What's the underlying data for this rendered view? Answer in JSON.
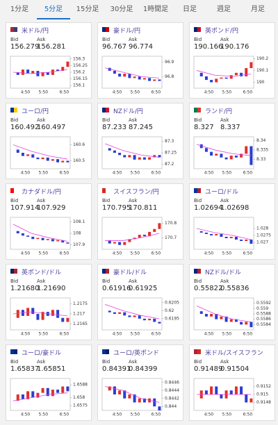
{
  "tabs": [
    "1分足",
    "5分足",
    "15分足",
    "30分足",
    "1時間足",
    "日足",
    "週足",
    "月足"
  ],
  "active_tab": 1,
  "labels": {
    "bid": "Bid",
    "ask": "Ask"
  },
  "x_ticks": [
    "4:50",
    "5:50",
    "6:50"
  ],
  "cards": [
    {
      "title": "米ドル/円",
      "flag": [
        "#b22234",
        "#3c3b6e"
      ],
      "bid": "156.279",
      "ask": "156.281",
      "ylim": [
        156.08,
        156.32
      ],
      "yticks": [
        156.3,
        156.25,
        156.2,
        156.15,
        156.1
      ],
      "closes": [
        156.2,
        156.18,
        156.22,
        156.19,
        156.21,
        156.17,
        156.2,
        156.18,
        156.22,
        156.21,
        156.24,
        156.28
      ],
      "ma": [
        156.2,
        156.19,
        156.2,
        156.22
      ]
    },
    {
      "title": "豪ドル/円",
      "flag": [
        "#00247d",
        "#cc0000"
      ],
      "bid": "96.767",
      "ask": "96.774",
      "ylim": [
        96.72,
        96.94
      ],
      "yticks": [
        96.9,
        96.8
      ],
      "closes": [
        96.86,
        96.84,
        96.82,
        96.8,
        96.82,
        96.79,
        96.8,
        96.78,
        96.79,
        96.77,
        96.78,
        96.77
      ],
      "ma": [
        96.86,
        96.83,
        96.8,
        96.79
      ]
    },
    {
      "title": "英ポンド/円",
      "flag": [
        "#012169",
        "#c8102e"
      ],
      "bid": "190.166",
      "ask": "190.176",
      "ylim": [
        189.95,
        190.22
      ],
      "yticks": [
        190.2,
        190.1,
        190
      ],
      "closes": [
        190.08,
        190.05,
        190.02,
        190.0,
        190.03,
        190.04,
        190.03,
        190.06,
        190.08,
        190.05,
        190.12,
        190.17
      ],
      "ma": [
        190.1,
        190.06,
        190.05,
        190.07
      ]
    },
    {
      "title": "ユーロ/円",
      "flag": [
        "#003399",
        "#ffcc00"
      ],
      "bid": "160.492",
      "ask": "160.497",
      "ylim": [
        160.45,
        160.65
      ],
      "yticks": [
        160.6,
        160.5
      ],
      "closes": [
        160.57,
        160.55,
        160.53,
        160.54,
        160.52,
        160.51,
        160.52,
        160.5,
        160.51,
        160.49,
        160.5,
        160.49
      ],
      "ma": [
        160.6,
        160.56,
        160.53,
        160.51
      ]
    },
    {
      "title": "NZドル/円",
      "flag": [
        "#00247d",
        "#cc142b"
      ],
      "bid": "87.233",
      "ask": "87.245",
      "ylim": [
        87.18,
        87.32
      ],
      "yticks": [
        87.3,
        87.25,
        87.2
      ],
      "closes": [
        87.27,
        87.26,
        87.25,
        87.24,
        87.23,
        87.24,
        87.22,
        87.23,
        87.22,
        87.23,
        87.24,
        87.23
      ],
      "ma": [
        87.29,
        87.26,
        87.24,
        87.23
      ]
    },
    {
      "title": "ランド/円",
      "flag": [
        "#007a4d",
        "#de3831"
      ],
      "bid": "8.327",
      "ask": "8.337",
      "ylim": [
        8.325,
        8.342
      ],
      "yticks": [
        8.34,
        8.335,
        8.33
      ],
      "closes": [
        8.338,
        8.336,
        8.334,
        8.332,
        8.333,
        8.331,
        8.33,
        8.332,
        8.331,
        8.333,
        8.337,
        8.327
      ],
      "ma": [
        8.338,
        8.335,
        8.333,
        8.332
      ]
    },
    {
      "title": "カナダドル/円",
      "flag": [
        "#ff0000",
        "#ffffff"
      ],
      "bid": "107.914",
      "ask": "107.929",
      "ylim": [
        107.86,
        108.14
      ],
      "yticks": [
        108.1,
        108,
        107.9
      ],
      "closes": [
        108.02,
        108.0,
        107.98,
        107.97,
        107.95,
        107.96,
        107.94,
        107.95,
        107.93,
        107.94,
        107.92,
        107.91
      ],
      "ma": [
        108.08,
        108.0,
        107.96,
        107.93
      ]
    },
    {
      "title": "スイスフラン/円",
      "flag": [
        "#d52b1e",
        "#ffffff"
      ],
      "bid": "170.795",
      "ask": "170.811",
      "ylim": [
        170.62,
        170.84
      ],
      "yticks": [
        170.8,
        170.7
      ],
      "closes": [
        170.68,
        170.66,
        170.67,
        170.65,
        170.67,
        170.69,
        170.7,
        170.72,
        170.71,
        170.74,
        170.76,
        170.8
      ],
      "ma": [
        170.68,
        170.68,
        170.7,
        170.73
      ]
    },
    {
      "title": "ユーロ/ドル",
      "flag": [
        "#003399",
        "#b22234"
      ],
      "bid": "1.02694",
      "ask": "1.02698",
      "ylim": [
        1.0265,
        1.0288
      ],
      "yticks": [
        1.028,
        1.0275,
        1.027
      ],
      "closes": [
        1.0278,
        1.0277,
        1.0276,
        1.0275,
        1.0276,
        1.0274,
        1.0273,
        1.0274,
        1.0272,
        1.0271,
        1.0272,
        1.0269
      ],
      "ma": [
        1.028,
        1.0277,
        1.0275,
        1.0272
      ]
    },
    {
      "title": "英ポンド/ドル",
      "flag": [
        "#012169",
        "#b22234"
      ],
      "bid": "1.21680",
      "ask": "1.21690",
      "ylim": [
        1.2162,
        1.2178
      ],
      "yticks": [
        1.2175,
        1.217,
        1.2165
      ],
      "closes": [
        1.2168,
        1.2172,
        1.2169,
        1.2173,
        1.217,
        1.2167,
        1.2171,
        1.2169,
        1.2172,
        1.2168,
        1.2166,
        1.2168
      ],
      "ma": [
        1.217,
        1.2171,
        1.217,
        1.2169
      ]
    },
    {
      "title": "豪ドル/ドル",
      "flag": [
        "#00247d",
        "#b22234"
      ],
      "bid": "0.61916",
      "ask": "0.61925",
      "ylim": [
        0.6188,
        0.6208
      ],
      "yticks": [
        0.6205,
        0.62,
        0.6195
      ],
      "closes": [
        0.62,
        0.6199,
        0.6198,
        0.6199,
        0.6197,
        0.6196,
        0.6197,
        0.6195,
        0.6194,
        0.6195,
        0.6193,
        0.6192
      ],
      "ma": [
        0.6204,
        0.62,
        0.6197,
        0.6195
      ]
    },
    {
      "title": "NZドル/ドル",
      "flag": [
        "#00247d",
        "#b22234"
      ],
      "bid": "0.55822",
      "ask": "0.55836",
      "ylim": [
        0.5582,
        0.5594
      ],
      "yticks": [
        0.5592,
        0.559,
        0.5588,
        0.5586,
        0.5584
      ],
      "closes": [
        0.5589,
        0.5588,
        0.5587,
        0.5588,
        0.5586,
        0.5587,
        0.5585,
        0.5586,
        0.5585,
        0.5584,
        0.5585,
        0.5583
      ],
      "ma": [
        0.5591,
        0.5588,
        0.5586,
        0.5585
      ]
    },
    {
      "title": "ユーロ/豪ドル",
      "flag": [
        "#003399",
        "#00247d"
      ],
      "bid": "1.65837",
      "ask": "1.65851",
      "ylim": [
        1.6572,
        1.6592
      ],
      "yticks": [
        1.6588,
        1.658,
        1.6575
      ],
      "closes": [
        1.6578,
        1.6582,
        1.6579,
        1.6584,
        1.658,
        1.6583,
        1.6586,
        1.6581,
        1.6585,
        1.6583,
        1.6587,
        1.6584
      ],
      "ma": [
        1.6578,
        1.658,
        1.6582,
        1.6583
      ]
    },
    {
      "title": "ユーロ/英ポンド",
      "flag": [
        "#003399",
        "#012169"
      ],
      "bid": "0.84391",
      "ask": "0.84399",
      "ylim": [
        0.8439,
        0.8447
      ],
      "yticks": [
        0.8446,
        0.8444,
        0.8442,
        0.844
      ],
      "closes": [
        0.8444,
        0.8445,
        0.8443,
        0.8444,
        0.8442,
        0.8443,
        0.8441,
        0.8442,
        0.8441,
        0.8442,
        0.844,
        0.8439
      ],
      "ma": [
        0.8445,
        0.8444,
        0.8442,
        0.8441
      ]
    },
    {
      "title": "米ドル/スイスフラン",
      "flag": [
        "#b22234",
        "#d52b1e"
      ],
      "bid": "0.91489",
      "ask": "0.91504",
      "ylim": [
        0.9146,
        0.9154
      ],
      "yticks": [
        0.9152,
        0.915,
        0.9148
      ],
      "closes": [
        0.9149,
        0.9151,
        0.915,
        0.9152,
        0.915,
        0.9149,
        0.9151,
        0.915,
        0.9152,
        0.915,
        0.9148,
        0.9149
      ],
      "ma": [
        0.915,
        0.915,
        0.915,
        0.915
      ]
    }
  ]
}
